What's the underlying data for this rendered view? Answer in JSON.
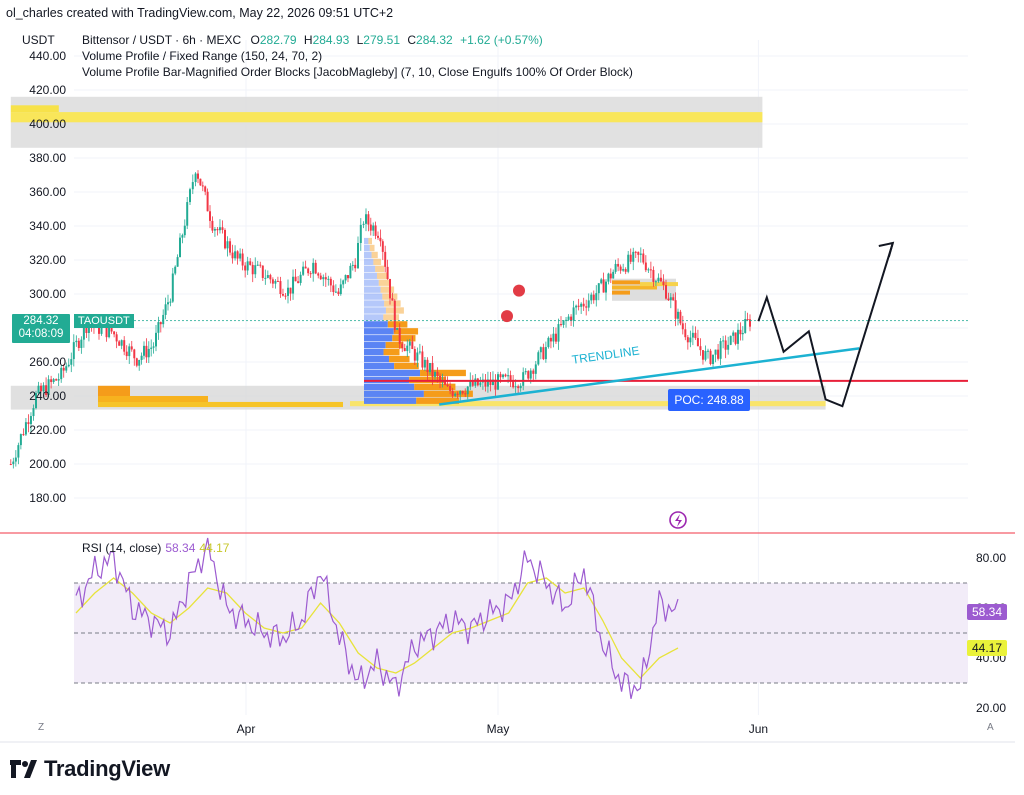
{
  "header": {
    "credit": "ol_charles created with TradingView.com, May 22, 2026 09:51 UTC+2",
    "currency": "USDT"
  },
  "legend": {
    "title": "Bittensor / USDT · 6h · MEXC",
    "o_key": "O",
    "o_val": "282.79",
    "h_key": "H",
    "h_val": "284.93",
    "l_key": "L",
    "l_val": "279.51",
    "c_key": "C",
    "c_val": "284.32",
    "chg": "+1.62 (+0.57%)",
    "indicator1": "Volume Profile / Fixed Range (150, 24, 70, 2)",
    "indicator2": "Volume Profile Bar-Magnified Order Blocks [JacobMagleby] (7, 10, Close Engulfs 100% Of Order Block)"
  },
  "price_tag": {
    "price": "284.32",
    "countdown": "04:08:09",
    "symbol": "TAOUSDT"
  },
  "annotations": {
    "trendline": "TRENDLINE",
    "poc": "POC: 248.88"
  },
  "rsi": {
    "legend": "RSI (14, close)",
    "value1": "58.34",
    "value2": "44.17",
    "tag1": "58.34",
    "tag2": "44.17"
  },
  "corners": {
    "left": "Z",
    "right": "A"
  },
  "brand": {
    "name": "TradingView"
  },
  "colors": {
    "up": "#22ab94",
    "down": "#f23645",
    "rsi": "#9c5bd0",
    "rsi_ma": "#e7e33a",
    "trend": "#1cb2d2",
    "poc_line": "#e8203a",
    "poc_label": "#2962ff",
    "vp_up": "#5b84f4",
    "vp_down": "#f59c1a"
  },
  "chart_data": [
    {
      "type": "candlestick",
      "title": "Bittensor / USDT · 6h · MEXC",
      "ylim": [
        170,
        450
      ],
      "y_ticks": [
        180,
        200,
        220,
        240,
        260,
        280,
        300,
        320,
        340,
        360,
        380,
        400,
        420,
        440
      ],
      "y_tick_labels": [
        "180.00",
        "200.00",
        "220.00",
        "240.00",
        "260.00",
        "280.00",
        "300.00",
        "320.00",
        "340.00",
        "360.00",
        "380.00",
        "400.00",
        "420.00",
        "440.00"
      ],
      "x_ticks": [
        "Apr",
        "May",
        "Jun"
      ],
      "close_path": [
        [
          "Mar 04",
          200
        ],
        [
          "Mar 07",
          240
        ],
        [
          "Mar 10",
          252
        ],
        [
          "Mar 13",
          282
        ],
        [
          "Mar 16",
          278
        ],
        [
          "Mar 19",
          262
        ],
        [
          "Mar 21",
          270
        ],
        [
          "Mar 23",
          300
        ],
        [
          "Mar 25",
          350
        ],
        [
          "Mar 26",
          375
        ],
        [
          "Mar 28",
          342
        ],
        [
          "Mar 31",
          320
        ],
        [
          "Apr 03",
          312
        ],
        [
          "Apr 06",
          302
        ],
        [
          "Apr 09",
          318
        ],
        [
          "Apr 12",
          300
        ],
        [
          "Apr 14",
          320
        ],
        [
          "Apr 15",
          344
        ],
        [
          "Apr 17",
          336
        ],
        [
          "Apr 19",
          275
        ],
        [
          "Apr 22",
          260
        ],
        [
          "Apr 25",
          243
        ],
        [
          "Apr 28",
          246
        ],
        [
          "May 01",
          248
        ],
        [
          "May 04",
          250
        ],
        [
          "May 07",
          270
        ],
        [
          "May 10",
          290
        ],
        [
          "May 13",
          302
        ],
        [
          "May 15",
          315
        ],
        [
          "May 18",
          322
        ],
        [
          "May 21",
          302
        ],
        [
          "May 23",
          280
        ],
        [
          "May 26",
          262
        ],
        [
          "May 29",
          273
        ],
        [
          "May 31",
          284.32
        ]
      ],
      "last": {
        "open": 282.79,
        "high": 284.93,
        "low": 279.51,
        "close": 284.32,
        "change": 1.62,
        "change_pct": 0.57
      },
      "order_blocks": [
        [
          398,
          412
        ],
        [
          386,
          416
        ],
        [
          236,
          246
        ],
        [
          233,
          238
        ],
        [
          296,
          309
        ]
      ],
      "volume_profile_price_range": [
        235,
        333
      ],
      "poc": 248.88,
      "trendline": [
        [
          "Apr 24",
          235
        ],
        [
          "Jun 13",
          268
        ]
      ],
      "projection": [
        [
          "Jun 01",
          284
        ],
        [
          "Jun 02",
          298
        ],
        [
          "Jun 04",
          266
        ],
        [
          "Jun 07",
          278
        ],
        [
          "Jun 09",
          238
        ],
        [
          "Jun 11",
          234
        ],
        [
          "Jun 17",
          330
        ]
      ]
    },
    {
      "type": "line",
      "title": "RSI (14, close)",
      "ylim": [
        15,
        90
      ],
      "y_ticks": [
        20,
        30,
        40,
        50,
        60,
        70,
        80
      ],
      "y_tick_labels": [
        "20.00",
        "",
        "40.00",
        "",
        "60.00",
        "",
        "80.00"
      ],
      "bands": [
        30,
        70
      ],
      "series": [
        {
          "name": "RSI",
          "values": [
            62,
            75,
            80,
            60,
            55,
            50,
            70,
            85,
            60,
            55,
            50,
            48,
            55,
            75,
            48,
            30,
            38,
            28,
            45,
            50,
            55,
            52,
            58,
            62,
            80,
            70,
            60,
            75,
            45,
            30,
            28,
            62,
            58
          ]
        },
        {
          "name": "RSI MA",
          "values": [
            58,
            66,
            72,
            66,
            58,
            54,
            60,
            68,
            66,
            58,
            52,
            50,
            52,
            62,
            54,
            42,
            36,
            34,
            38,
            44,
            50,
            52,
            55,
            58,
            70,
            72,
            66,
            68,
            55,
            40,
            32,
            40,
            44
          ]
        }
      ]
    }
  ]
}
